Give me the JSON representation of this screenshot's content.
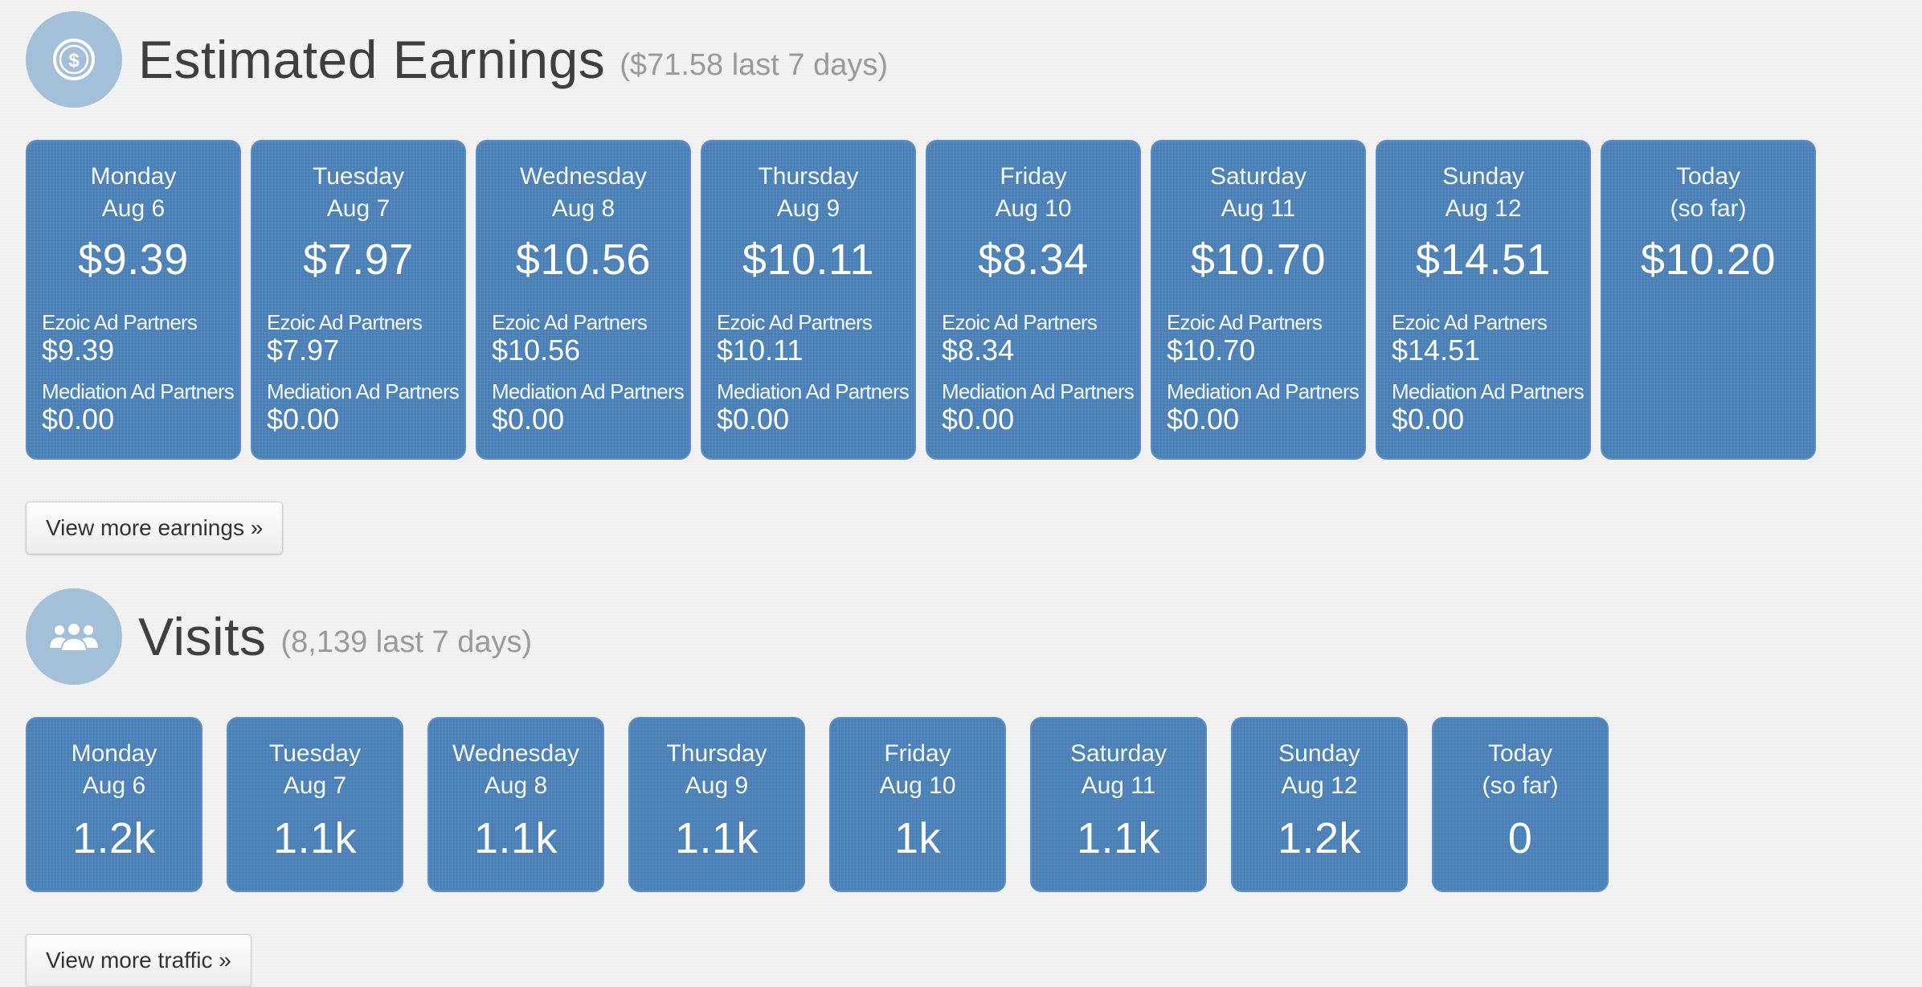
{
  "earnings": {
    "title": "Estimated Earnings",
    "subtitle": "($71.58 last 7 days)",
    "icon": "dollar-coin-icon",
    "partner_label_1": "Ezoic Ad Partners",
    "partner_label_2": "Mediation Ad Partners",
    "days": [
      {
        "day": "Monday",
        "date": "Aug 6",
        "amount": "$9.39",
        "ezoic": "$9.39",
        "mediation": "$0.00"
      },
      {
        "day": "Tuesday",
        "date": "Aug 7",
        "amount": "$7.97",
        "ezoic": "$7.97",
        "mediation": "$0.00"
      },
      {
        "day": "Wednesday",
        "date": "Aug 8",
        "amount": "$10.56",
        "ezoic": "$10.56",
        "mediation": "$0.00"
      },
      {
        "day": "Thursday",
        "date": "Aug 9",
        "amount": "$10.11",
        "ezoic": "$10.11",
        "mediation": "$0.00"
      },
      {
        "day": "Friday",
        "date": "Aug 10",
        "amount": "$8.34",
        "ezoic": "$8.34",
        "mediation": "$0.00"
      },
      {
        "day": "Saturday",
        "date": "Aug 11",
        "amount": "$10.70",
        "ezoic": "$10.70",
        "mediation": "$0.00"
      },
      {
        "day": "Sunday",
        "date": "Aug 12",
        "amount": "$14.51",
        "ezoic": "$14.51",
        "mediation": "$0.00"
      },
      {
        "day": "Today",
        "date": "(so far)",
        "amount": "$10.20"
      }
    ],
    "button_label": "View more earnings »"
  },
  "visits": {
    "title": "Visits",
    "subtitle": "(8,139 last 7 days)",
    "icon": "users-group-icon",
    "days": [
      {
        "day": "Monday",
        "date": "Aug 6",
        "count": "1.2k"
      },
      {
        "day": "Tuesday",
        "date": "Aug 7",
        "count": "1.1k"
      },
      {
        "day": "Wednesday",
        "date": "Aug 8",
        "count": "1.1k"
      },
      {
        "day": "Thursday",
        "date": "Aug 9",
        "count": "1.1k"
      },
      {
        "day": "Friday",
        "date": "Aug 10",
        "count": "1k"
      },
      {
        "day": "Saturday",
        "date": "Aug 11",
        "count": "1.1k"
      },
      {
        "day": "Sunday",
        "date": "Aug 12",
        "count": "1.2k"
      },
      {
        "day": "Today",
        "date": "(so far)",
        "count": "0"
      }
    ],
    "button_label": "View more traffic »"
  },
  "colors": {
    "card_blue": "#4a80b6",
    "icon_circle": "#a3bfd9",
    "background": "#f2f2f2"
  }
}
